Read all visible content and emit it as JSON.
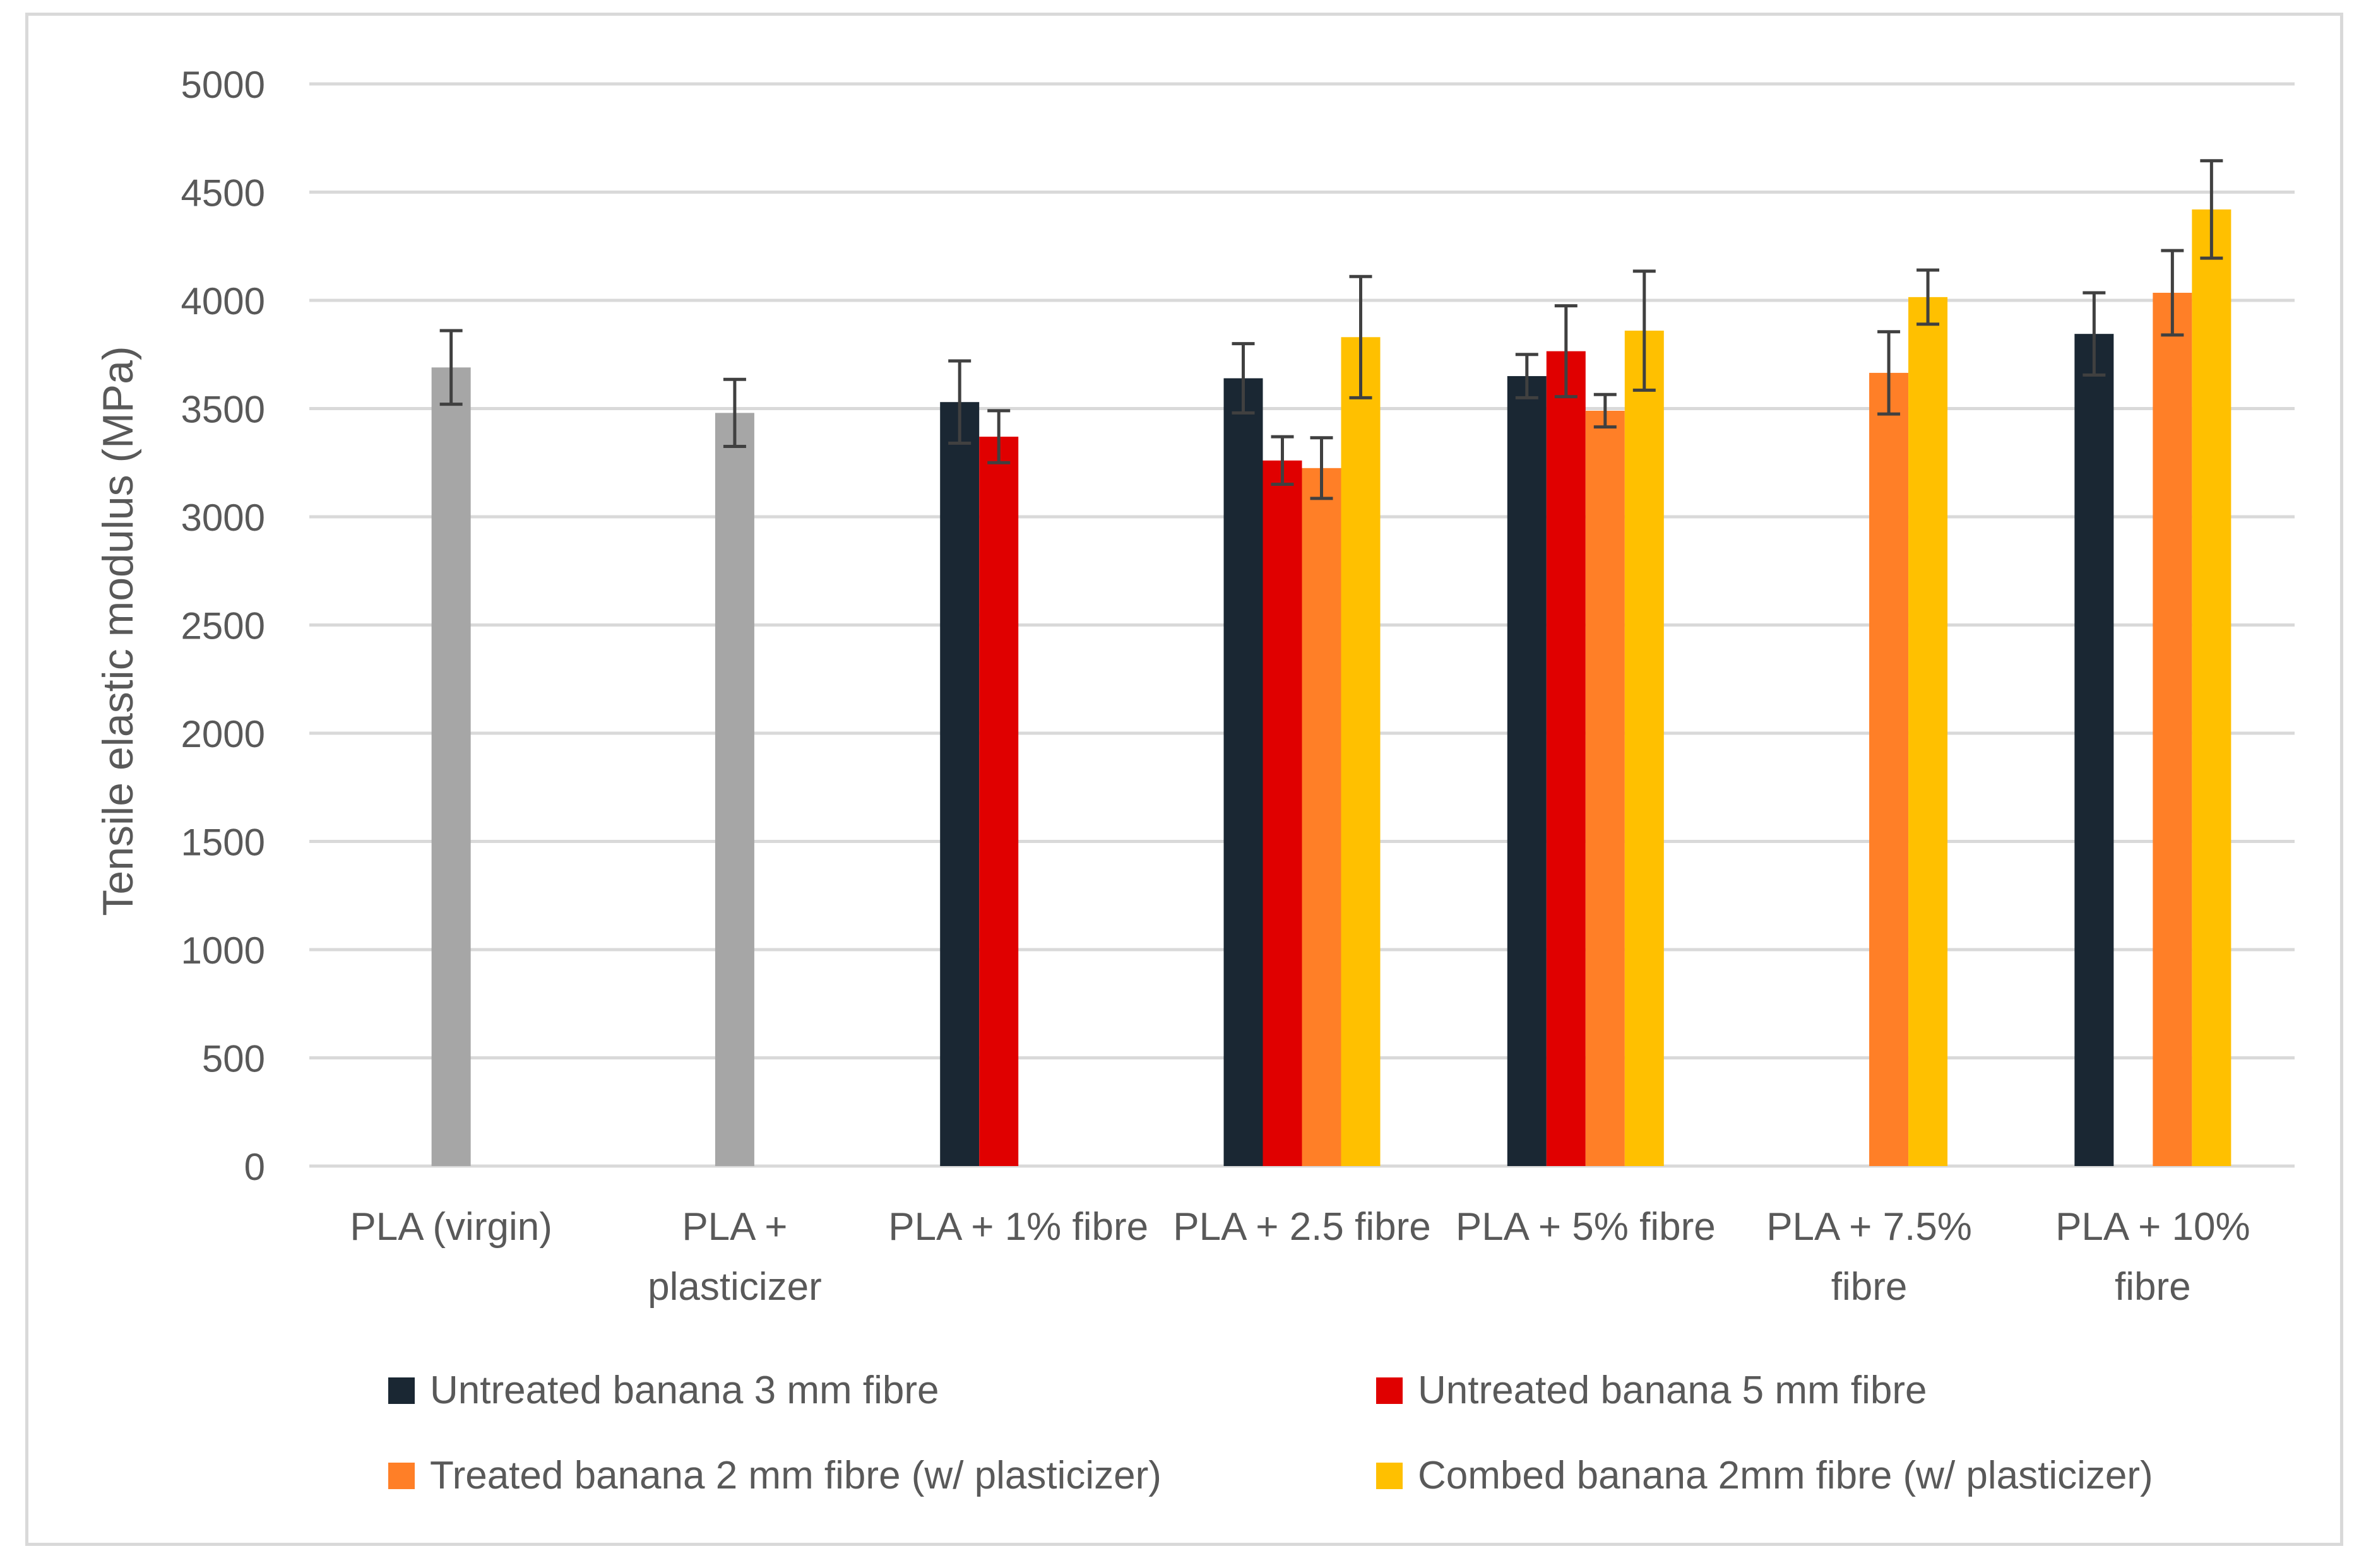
{
  "chart_data": {
    "type": "bar",
    "title": "",
    "xlabel": "",
    "ylabel": "Tensile elastic modulus (MPa)",
    "ylim": [
      0,
      5000
    ],
    "yticks": [
      0,
      500,
      1000,
      1500,
      2000,
      2500,
      3000,
      3500,
      4000,
      4500,
      5000
    ],
    "grid": true,
    "legend_position": "bottom",
    "categories": [
      [
        "PLA (virgin)"
      ],
      [
        "PLA +",
        "plasticizer"
      ],
      [
        "PLA + 1% fibre"
      ],
      [
        "PLA + 2.5 fibre"
      ],
      [
        "PLA + 5% fibre"
      ],
      [
        "PLA + 7.5%",
        "fibre"
      ],
      [
        "PLA + 10%",
        "fibre"
      ]
    ],
    "baseline": {
      "name": "PLA",
      "color": "#a6a6a6",
      "values": [
        3690,
        3480,
        null,
        null,
        null,
        null,
        null
      ],
      "errors": [
        170,
        155,
        null,
        null,
        null,
        null,
        null
      ]
    },
    "series": [
      {
        "name": "Untreated banana 3 mm fibre",
        "color": "#1a2733",
        "values": [
          null,
          null,
          3530,
          3640,
          3650,
          null,
          3845
        ],
        "errors": [
          null,
          null,
          190,
          160,
          100,
          null,
          190
        ]
      },
      {
        "name": "Untreated banana 5 mm fibre",
        "color": "#e00000",
        "values": [
          null,
          null,
          3370,
          3260,
          3765,
          null,
          null
        ],
        "errors": [
          null,
          null,
          120,
          110,
          210,
          null,
          null
        ]
      },
      {
        "name": "Treated banana 2 mm fibre (w/ plasticizer)",
        "color": "#ff7f27",
        "values": [
          null,
          null,
          null,
          3225,
          3490,
          3665,
          4035
        ],
        "errors": [
          null,
          null,
          null,
          140,
          75,
          190,
          195
        ]
      },
      {
        "name": "Combed banana 2mm fibre (w/ plasticizer)",
        "color": "#ffc000",
        "values": [
          null,
          null,
          null,
          3830,
          3860,
          4015,
          4420
        ],
        "errors": [
          null,
          null,
          null,
          280,
          275,
          125,
          225
        ]
      }
    ]
  }
}
